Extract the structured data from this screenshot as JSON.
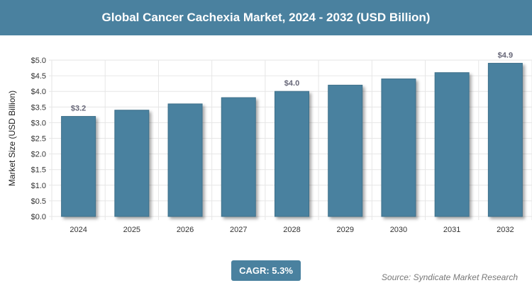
{
  "chart_data": {
    "type": "bar",
    "title": "Global Cancer Cachexia Market, 2024 - 2032 (USD Billion)",
    "ylabel": "Market Size (USD Billion)",
    "xlabel": "",
    "categories": [
      "2024",
      "2025",
      "2026",
      "2027",
      "2028",
      "2029",
      "2030",
      "2031",
      "2032"
    ],
    "values": [
      3.2,
      3.4,
      3.6,
      3.8,
      4.0,
      4.2,
      4.4,
      4.6,
      4.9
    ],
    "data_labels": {
      "2024": "$3.2",
      "2028": "$4.0",
      "2032": "$4.9"
    },
    "ylim": [
      0,
      5
    ],
    "yticks": [
      "$0.0",
      "$0.5",
      "$1.0",
      "$1.5",
      "$2.0",
      "$2.5",
      "$3.0",
      "$3.5",
      "$4.0",
      "$4.5",
      "$5.0"
    ],
    "grid": true,
    "bar_color": "#4a819f"
  },
  "cagr": "CAGR: 5.3%",
  "source": "Source: Syndicate Market Research"
}
